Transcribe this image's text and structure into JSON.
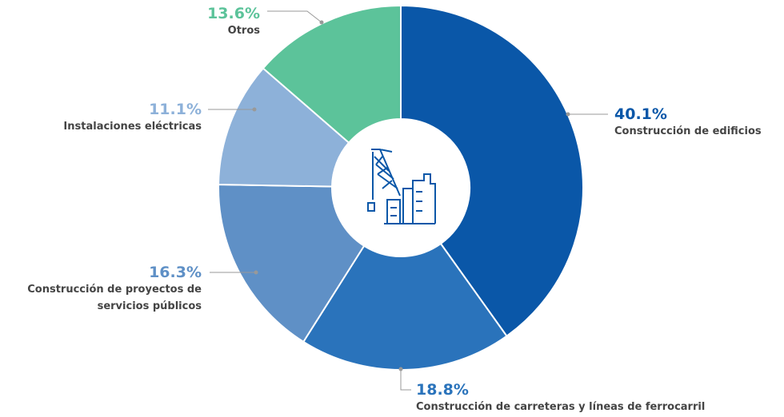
{
  "chart_data": {
    "type": "donut",
    "categories": [
      "Construcción de edificios",
      "Construcción de carreteras y líneas de ferrocarril",
      "Construcción de proyectos de servicios públicos",
      "Instalaciones eléctricas",
      "Otros"
    ],
    "values": [
      40.1,
      18.8,
      16.3,
      11.1,
      13.6
    ],
    "value_labels": [
      "40.1%",
      "18.8%",
      "16.3%",
      "11.1%",
      "13.6%"
    ],
    "colors": [
      "#0a57a8",
      "#2a73bb",
      "#5f90c6",
      "#8db1d9",
      "#5cc39a"
    ]
  }
}
